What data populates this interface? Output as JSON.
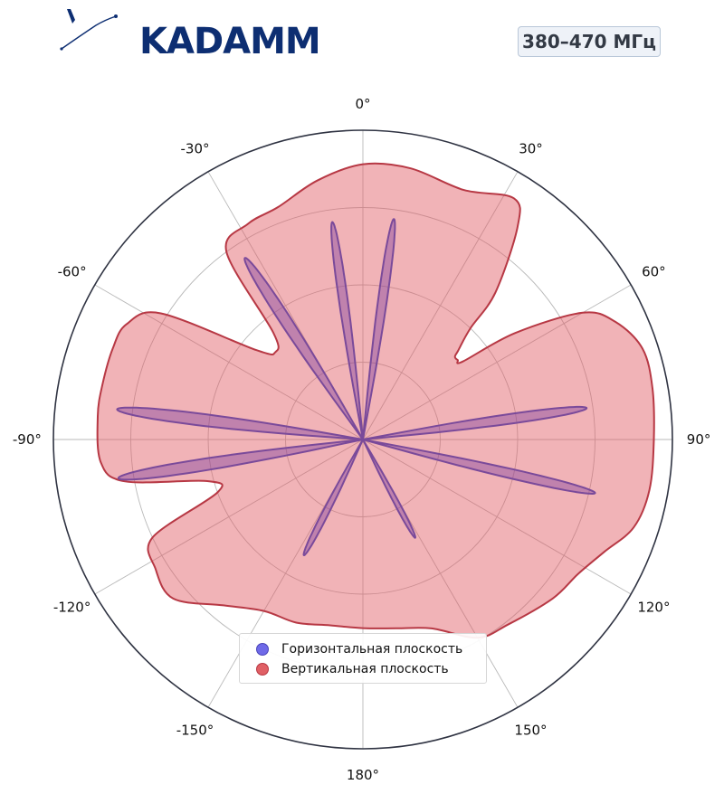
{
  "logo": {
    "text": "KADAMM",
    "color": "#0d2e72"
  },
  "badge": {
    "label": "380–470 МГц"
  },
  "chart_data": {
    "type": "polar",
    "angle_zero": "top",
    "angle_direction": "clockwise",
    "r_range": [
      0,
      1
    ],
    "grid": true,
    "radial_grid_values": [
      0.25,
      0.5,
      0.75
    ],
    "angle_ticks": [
      0,
      30,
      60,
      90,
      120,
      150,
      180,
      -150,
      -120,
      -90,
      -60,
      -30
    ],
    "angle_tick_labels": [
      "0°",
      "30°",
      "60°",
      "90°",
      "120°",
      "150°",
      "180°",
      "-150°",
      "-120°",
      "-90°",
      "-60°",
      "-30°"
    ],
    "legend": {
      "position": "bottom-center"
    },
    "series": [
      {
        "name": "Вертикальная плоскость",
        "color": "#e05a63",
        "edge_color": "#b73844",
        "points": [
          [
            0,
            0.89
          ],
          [
            10,
            0.89
          ],
          [
            22,
            0.87
          ],
          [
            32,
            0.92
          ],
          [
            36,
            0.85
          ],
          [
            42,
            0.64
          ],
          [
            44,
            0.5
          ],
          [
            47,
            0.42
          ],
          [
            48,
            0.4
          ],
          [
            50,
            0.4
          ],
          [
            52,
            0.41
          ],
          [
            55,
            0.6
          ],
          [
            60,
            0.82
          ],
          [
            65,
            0.9
          ],
          [
            72,
            0.95
          ],
          [
            80,
            0.95
          ],
          [
            90,
            0.94
          ],
          [
            100,
            0.94
          ],
          [
            108,
            0.92
          ],
          [
            115,
            0.86
          ],
          [
            122,
            0.82
          ],
          [
            130,
            0.8
          ],
          [
            142,
            0.76
          ],
          [
            150,
            0.74
          ],
          [
            160,
            0.65
          ],
          [
            170,
            0.62
          ],
          [
            180,
            0.61
          ],
          [
            -170,
            0.61
          ],
          [
            -160,
            0.63
          ],
          [
            -150,
            0.64
          ],
          [
            -140,
            0.7
          ],
          [
            -130,
            0.8
          ],
          [
            -122,
            0.79
          ],
          [
            -115,
            0.75
          ],
          [
            -110,
            0.5
          ],
          [
            -105,
            0.52
          ],
          [
            -100,
            0.78
          ],
          [
            -95,
            0.85
          ],
          [
            -85,
            0.86
          ],
          [
            -78,
            0.86
          ],
          [
            -70,
            0.86
          ],
          [
            -64,
            0.85
          ],
          [
            -58,
            0.77
          ],
          [
            -50,
            0.45
          ],
          [
            -45,
            0.4
          ],
          [
            -40,
            0.45
          ],
          [
            -36,
            0.75
          ],
          [
            -28,
            0.79
          ],
          [
            -20,
            0.8
          ],
          [
            -10,
            0.85
          ]
        ]
      },
      {
        "name": "Горизонтальная плоскость",
        "color": "#7b3fa0",
        "edge_color": "#7a4a9a",
        "lobes": [
          {
            "center": 8,
            "length": 0.72,
            "width": 2.5
          },
          {
            "center": -8,
            "length": 0.71,
            "width": 2.5
          },
          {
            "center": -33,
            "length": 0.7,
            "width": 3.2
          },
          {
            "center": 82,
            "length": 0.73,
            "width": 2.7
          },
          {
            "center": 103,
            "length": 0.77,
            "width": 2.5
          },
          {
            "center": 152,
            "length": 0.36,
            "width": 2.7
          },
          {
            "center": -153,
            "length": 0.42,
            "width": 3.0
          },
          {
            "center": -83,
            "length": 0.8,
            "width": 3.0
          },
          {
            "center": -99,
            "length": 0.8,
            "width": 3.0
          }
        ]
      }
    ]
  }
}
